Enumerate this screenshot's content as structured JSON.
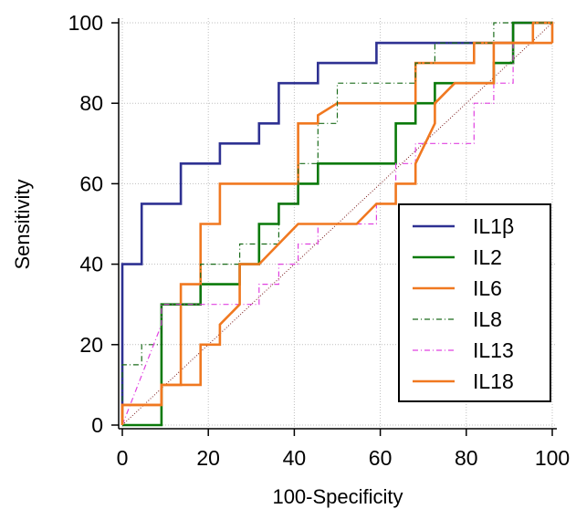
{
  "chart_data": {
    "type": "line",
    "title": "",
    "xlabel": "100-Specificity",
    "ylabel": "Sensitivity",
    "xlim": [
      0,
      100
    ],
    "ylim": [
      0,
      100
    ],
    "x_ticks": [
      "0",
      "20",
      "40",
      "60",
      "80",
      "100"
    ],
    "y_ticks": [
      "0",
      "20",
      "40",
      "60",
      "80",
      "100"
    ],
    "grid": true,
    "legend_position": "bottom-right",
    "reference_line": {
      "style": "dotted",
      "color": "#7a1a1a"
    },
    "series": [
      {
        "name": "IL1β",
        "color": "#2e3192",
        "dash": "solid",
        "points": [
          [
            0,
            0
          ],
          [
            0,
            40
          ],
          [
            4.5,
            40
          ],
          [
            4.5,
            55
          ],
          [
            13.6,
            55
          ],
          [
            13.6,
            65
          ],
          [
            22.7,
            65
          ],
          [
            22.7,
            70
          ],
          [
            31.8,
            70
          ],
          [
            31.8,
            75
          ],
          [
            36.4,
            75
          ],
          [
            36.4,
            85
          ],
          [
            45.5,
            85
          ],
          [
            45.5,
            90
          ],
          [
            59.1,
            90
          ],
          [
            59.1,
            95
          ],
          [
            90.9,
            95
          ],
          [
            90.9,
            100
          ],
          [
            100,
            100
          ]
        ]
      },
      {
        "name": "IL2",
        "color": "#0a7a0a",
        "dash": "solid",
        "points": [
          [
            0,
            0
          ],
          [
            9.1,
            0
          ],
          [
            9.1,
            30
          ],
          [
            18.2,
            30
          ],
          [
            18.2,
            35
          ],
          [
            27.3,
            35
          ],
          [
            27.3,
            40
          ],
          [
            31.8,
            40
          ],
          [
            31.8,
            50
          ],
          [
            36.4,
            50
          ],
          [
            36.4,
            55
          ],
          [
            40.9,
            55
          ],
          [
            40.9,
            60
          ],
          [
            45.5,
            60
          ],
          [
            45.5,
            65
          ],
          [
            63.6,
            65
          ],
          [
            63.6,
            75
          ],
          [
            68.2,
            75
          ],
          [
            68.2,
            80
          ],
          [
            72.7,
            80
          ],
          [
            72.7,
            85
          ],
          [
            86.4,
            85
          ],
          [
            86.4,
            90
          ],
          [
            90.9,
            90
          ],
          [
            90.9,
            100
          ],
          [
            100,
            100
          ]
        ]
      },
      {
        "name": "IL6",
        "color": "#f07820",
        "dash": "solid",
        "points": [
          [
            0,
            0
          ],
          [
            0,
            5
          ],
          [
            9.1,
            5
          ],
          [
            9.1,
            10
          ],
          [
            13.6,
            10
          ],
          [
            13.6,
            35
          ],
          [
            18.2,
            35
          ],
          [
            18.2,
            50
          ],
          [
            22.7,
            50
          ],
          [
            22.7,
            60
          ],
          [
            40.9,
            60
          ],
          [
            40.9,
            75
          ],
          [
            45.5,
            75
          ],
          [
            45.5,
            77
          ],
          [
            50,
            80
          ],
          [
            68.2,
            80
          ],
          [
            68.2,
            90
          ],
          [
            81.8,
            90
          ],
          [
            81.8,
            95
          ],
          [
            95.5,
            95
          ],
          [
            95.5,
            100
          ],
          [
            100,
            100
          ],
          [
            100,
            95
          ]
        ]
      },
      {
        "name": "IL8",
        "color": "#1a6b1a",
        "dash": "dashdot",
        "points": [
          [
            0,
            0
          ],
          [
            0,
            15
          ],
          [
            4.5,
            15
          ],
          [
            4.5,
            20
          ],
          [
            9.1,
            20
          ],
          [
            9.1,
            30
          ],
          [
            18.2,
            30
          ],
          [
            18.2,
            40
          ],
          [
            27.3,
            40
          ],
          [
            27.3,
            45
          ],
          [
            36.4,
            45
          ],
          [
            36.4,
            55
          ],
          [
            40.9,
            55
          ],
          [
            40.9,
            65
          ],
          [
            45.5,
            65
          ],
          [
            45.5,
            75
          ],
          [
            50,
            75
          ],
          [
            50,
            85
          ],
          [
            68.2,
            85
          ],
          [
            68.2,
            90
          ],
          [
            72.7,
            90
          ],
          [
            72.7,
            95
          ],
          [
            86.4,
            95
          ],
          [
            86.4,
            100
          ],
          [
            100,
            100
          ]
        ]
      },
      {
        "name": "IL13",
        "color": "#e040e0",
        "dash": "dashdot",
        "points": [
          [
            0,
            0
          ],
          [
            9.1,
            25
          ],
          [
            9.1,
            30
          ],
          [
            31.8,
            30
          ],
          [
            31.8,
            35
          ],
          [
            36.4,
            35
          ],
          [
            36.4,
            40
          ],
          [
            40.9,
            40
          ],
          [
            40.9,
            45
          ],
          [
            45.5,
            45
          ],
          [
            45.5,
            50
          ],
          [
            59.1,
            50
          ],
          [
            59.1,
            55
          ],
          [
            63.6,
            55
          ],
          [
            63.6,
            65
          ],
          [
            68.2,
            65
          ],
          [
            68.2,
            70
          ],
          [
            81.8,
            70
          ],
          [
            81.8,
            80
          ],
          [
            86.4,
            80
          ],
          [
            86.4,
            85
          ],
          [
            90.9,
            85
          ],
          [
            90.9,
            95
          ],
          [
            100,
            95
          ]
        ]
      },
      {
        "name": "IL18",
        "color": "#f07820",
        "dash": "solid",
        "points": [
          [
            0,
            0
          ],
          [
            0,
            5
          ],
          [
            9.1,
            5
          ],
          [
            9.1,
            10
          ],
          [
            18.2,
            10
          ],
          [
            18.2,
            20
          ],
          [
            22.7,
            20
          ],
          [
            22.7,
            25
          ],
          [
            27.3,
            30
          ],
          [
            27.3,
            40
          ],
          [
            31.8,
            40
          ],
          [
            40.9,
            50
          ],
          [
            54.5,
            50
          ],
          [
            59.1,
            55
          ],
          [
            63.6,
            55
          ],
          [
            63.6,
            60
          ],
          [
            68.2,
            60
          ],
          [
            68.2,
            65
          ],
          [
            72.7,
            75
          ],
          [
            72.7,
            80
          ],
          [
            77.3,
            85
          ],
          [
            86.4,
            85
          ],
          [
            86.4,
            95
          ],
          [
            100,
            95
          ]
        ]
      }
    ]
  }
}
